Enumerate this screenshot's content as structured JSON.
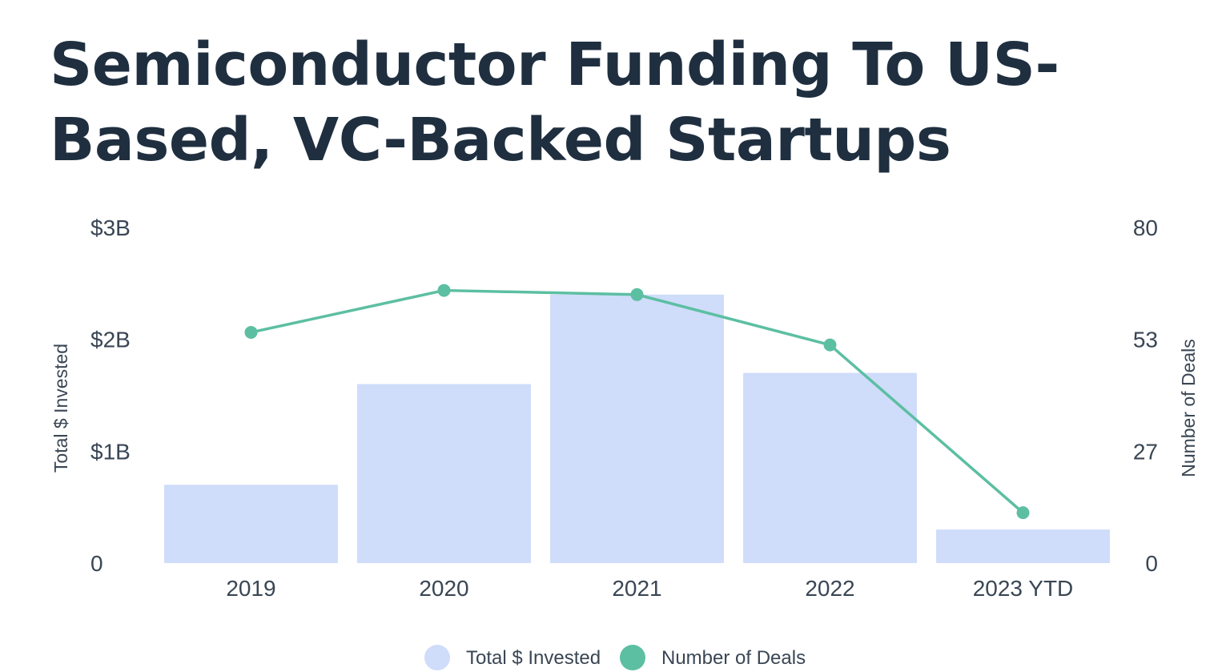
{
  "title": "Semiconductor Funding To US-Based, VC-Backed Startups",
  "chart_data": {
    "type": "bar",
    "categories": [
      "2019",
      "2020",
      "2021",
      "2022",
      "2023 YTD"
    ],
    "series": [
      {
        "name": "Total $ Invested",
        "type": "bar",
        "axis": "left",
        "color": "#cfdcfa",
        "values": [
          0.7,
          1.6,
          2.4,
          1.7,
          0.3
        ]
      },
      {
        "name": "Number of Deals",
        "type": "line",
        "axis": "right",
        "color": "#5cbfa2",
        "values": [
          55,
          65,
          64,
          52,
          12
        ]
      }
    ],
    "ylabel": "Total $ Invested",
    "y2label": "Number of Deals",
    "ylim": [
      0,
      3
    ],
    "y2lim": [
      0,
      80
    ],
    "yticks": [
      {
        "value": 0,
        "label": "0"
      },
      {
        "value": 1,
        "label": "$1B"
      },
      {
        "value": 2,
        "label": "$2B"
      },
      {
        "value": 3,
        "label": "$3B"
      }
    ],
    "y2ticks": [
      {
        "value": 0,
        "label": "0"
      },
      {
        "value": 26.67,
        "label": "27"
      },
      {
        "value": 53.33,
        "label": "53"
      },
      {
        "value": 80,
        "label": "80"
      }
    ],
    "grid": false,
    "legend": "bottom-center"
  }
}
